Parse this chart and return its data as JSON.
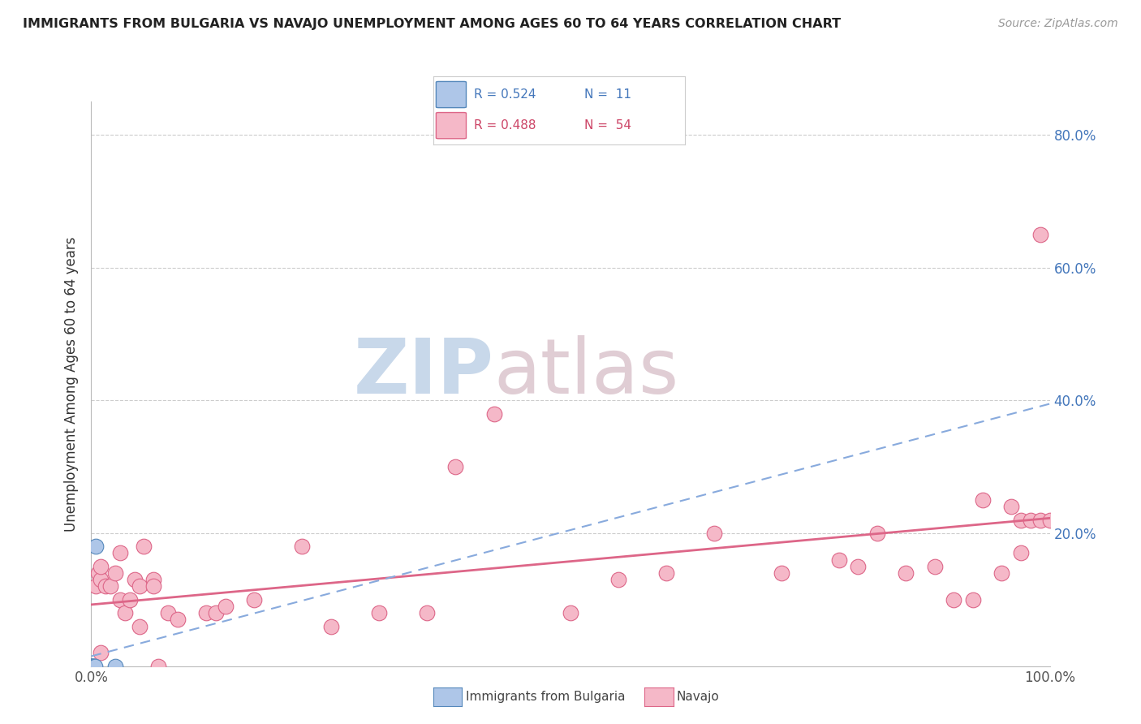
{
  "title": "IMMIGRANTS FROM BULGARIA VS NAVAJO UNEMPLOYMENT AMONG AGES 60 TO 64 YEARS CORRELATION CHART",
  "source": "Source: ZipAtlas.com",
  "ylabel": "Unemployment Among Ages 60 to 64 years",
  "xlim": [
    0,
    1.0
  ],
  "ylim": [
    0,
    0.85
  ],
  "background_color": "#ffffff",
  "bulgaria_color": "#aec6e8",
  "navajo_color": "#f5b8c8",
  "bulgaria_edge": "#5588bb",
  "navajo_edge": "#dd6688",
  "trend_blue": "#88aadd",
  "trend_pink": "#dd6688",
  "grid_color": "#cccccc",
  "bulgaria_x": [
    0.0,
    0.0,
    0.0,
    0.001,
    0.001,
    0.002,
    0.002,
    0.003,
    0.004,
    0.005,
    0.025
  ],
  "bulgaria_y": [
    0.0,
    0.0,
    0.0,
    0.0,
    0.0,
    0.0,
    0.0,
    0.0,
    0.0,
    0.18,
    0.0
  ],
  "navajo_x": [
    0.0,
    0.0,
    0.005,
    0.007,
    0.01,
    0.01,
    0.01,
    0.015,
    0.02,
    0.025,
    0.03,
    0.03,
    0.035,
    0.04,
    0.045,
    0.05,
    0.05,
    0.055,
    0.065,
    0.065,
    0.07,
    0.08,
    0.09,
    0.12,
    0.13,
    0.14,
    0.17,
    0.22,
    0.25,
    0.3,
    0.35,
    0.38,
    0.42,
    0.5,
    0.55,
    0.6,
    0.65,
    0.72,
    0.78,
    0.8,
    0.82,
    0.85,
    0.88,
    0.9,
    0.92,
    0.93,
    0.95,
    0.96,
    0.97,
    0.97,
    0.98,
    0.99,
    0.99,
    1.0
  ],
  "navajo_y": [
    0.0,
    0.0,
    0.12,
    0.14,
    0.13,
    0.15,
    0.02,
    0.12,
    0.12,
    0.14,
    0.1,
    0.17,
    0.08,
    0.1,
    0.13,
    0.06,
    0.12,
    0.18,
    0.13,
    0.12,
    0.0,
    0.08,
    0.07,
    0.08,
    0.08,
    0.09,
    0.1,
    0.18,
    0.06,
    0.08,
    0.08,
    0.3,
    0.38,
    0.08,
    0.13,
    0.14,
    0.2,
    0.14,
    0.16,
    0.15,
    0.2,
    0.14,
    0.15,
    0.1,
    0.1,
    0.25,
    0.14,
    0.24,
    0.17,
    0.22,
    0.22,
    0.65,
    0.22,
    0.22
  ]
}
